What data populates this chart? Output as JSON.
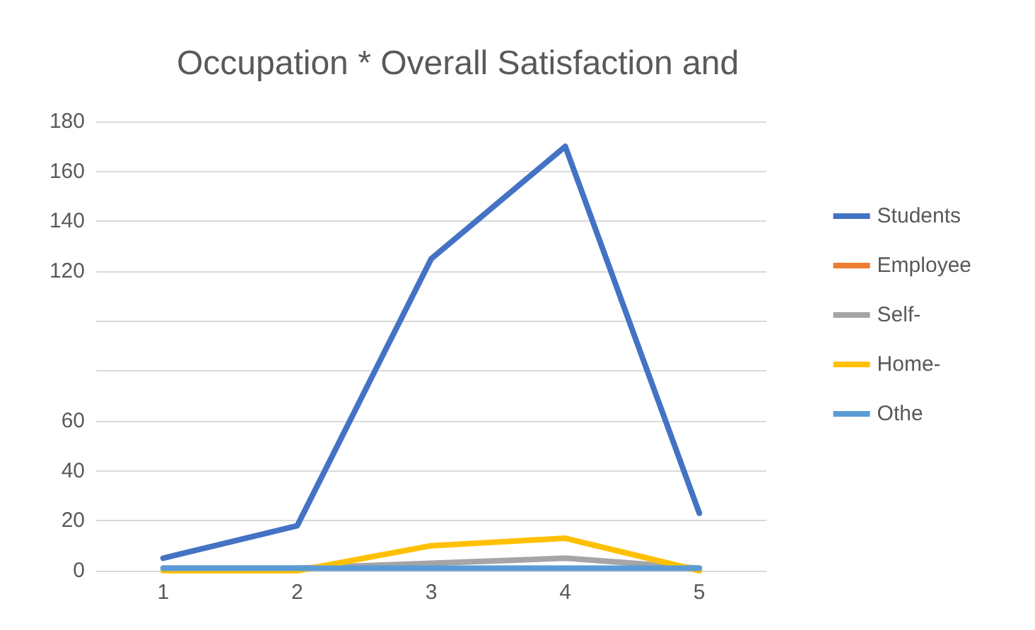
{
  "chart_data": {
    "type": "line",
    "title": "Occupation * Overall Satisfaction and",
    "categories": [
      "1",
      "2",
      "3",
      "4",
      "5"
    ],
    "series": [
      {
        "name": "Students",
        "color": "#4472c4",
        "values": [
          5,
          18,
          125,
          170,
          23
        ]
      },
      {
        "name": "Employee",
        "color": "#ed7d31",
        "values": [
          null,
          null,
          null,
          null,
          null
        ]
      },
      {
        "name": "Self-",
        "color": "#a5a5a5",
        "values": [
          1,
          1,
          3,
          5,
          1
        ]
      },
      {
        "name": "Home-",
        "color": "#ffc000",
        "values": [
          0,
          0,
          10,
          13,
          0
        ]
      },
      {
        "name": "Othe",
        "color": "#5b9bd5",
        "values": [
          1,
          1,
          1,
          1,
          1
        ]
      }
    ],
    "ylim": [
      0,
      180
    ],
    "yticks": [
      0,
      20,
      40,
      60,
      {
        "value": 80,
        "label": null
      },
      {
        "value": 100,
        "label": null
      },
      120,
      140,
      160,
      180
    ],
    "grid": "y",
    "legend": "right",
    "marker": "none",
    "line_style": "solid"
  }
}
